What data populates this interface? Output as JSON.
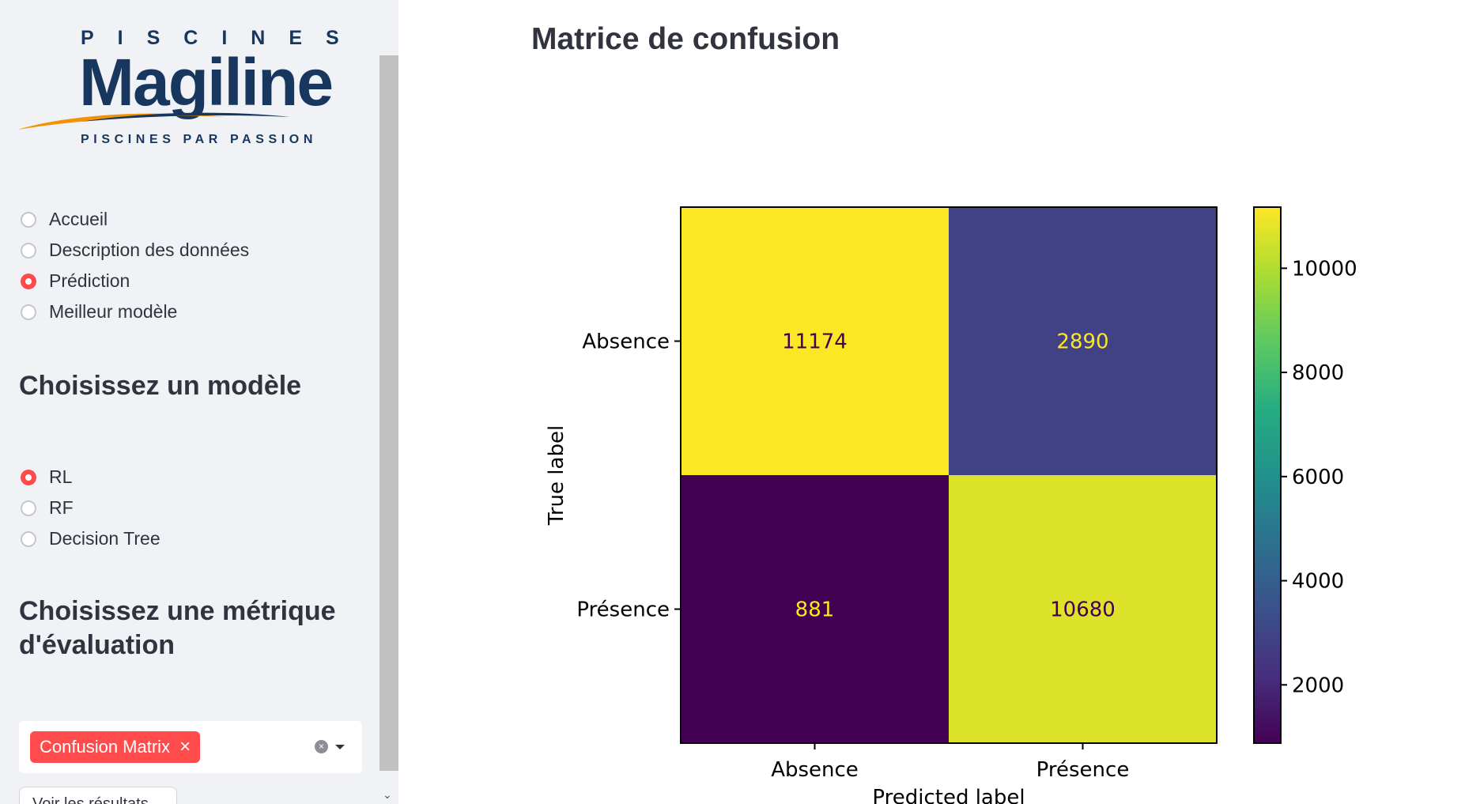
{
  "sidebar": {
    "logo": {
      "top": "PISCINES",
      "main": "Magiline",
      "sub": "PISCINES PAR PASSION",
      "colors": {
        "navy": "#17375e",
        "orange": "#f39200"
      }
    },
    "nav": {
      "items": [
        {
          "label": "Accueil",
          "selected": false
        },
        {
          "label": "Description des données",
          "selected": false
        },
        {
          "label": "Prédiction",
          "selected": true
        },
        {
          "label": "Meilleur modèle",
          "selected": false
        }
      ]
    },
    "model_heading": "Choisissez un modèle",
    "models": {
      "items": [
        {
          "label": "RL",
          "selected": true
        },
        {
          "label": "RF",
          "selected": false
        },
        {
          "label": "Decision Tree",
          "selected": false
        }
      ]
    },
    "metric_heading_line1": "Choisissez une métrique",
    "metric_heading_line2": "d'évaluation",
    "metric_select": {
      "selected_tags": [
        "Confusion Matrix"
      ],
      "tag_remove_icon": "close-icon",
      "clear_icon": "clear-circle-icon",
      "dropdown_icon": "caret-down-icon"
    },
    "result_button_label": "Voir les résultats",
    "accent_color": "#ff4b4b"
  },
  "main": {
    "title": "Matrice de confusion"
  },
  "chart_data": {
    "type": "heatmap",
    "title": "",
    "xlabel": "Predicted label",
    "ylabel": "True label",
    "x_categories": [
      "Absence",
      "Présence"
    ],
    "y_categories": [
      "Absence",
      "Présence"
    ],
    "values": [
      [
        11174,
        2890
      ],
      [
        881,
        10680
      ]
    ],
    "colormap": "viridis",
    "colorbar": {
      "ticks": [
        2000,
        4000,
        6000,
        8000,
        10000
      ],
      "min": 881,
      "max": 11174
    },
    "grid": false
  }
}
